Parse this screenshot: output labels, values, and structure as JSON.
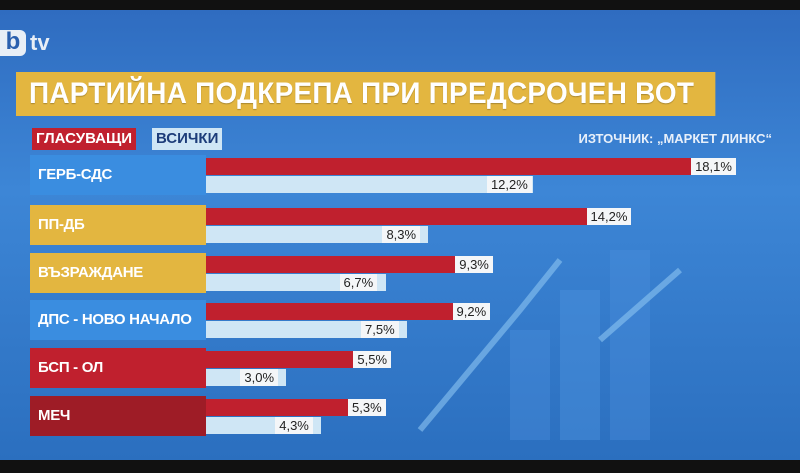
{
  "logo": {
    "b": "b",
    "tv": "tv"
  },
  "title": "ПАРТИЙНА ПОДКРЕПА ПРИ ПРЕДСРОЧЕН ВОТ",
  "source": "ИЗТОЧНИК: „МАРКЕТ ЛИНКС“",
  "colors": {
    "voters": "#c0202e",
    "all": "#cfe6f5",
    "title_bg": "#e3b640",
    "background": "#3578c8"
  },
  "chart_data": {
    "type": "bar",
    "orientation": "horizontal",
    "title": "ПАРТИЙНА ПОДКРЕПА ПРИ ПРЕДСРОЧЕН ВОТ",
    "categories": [
      "ГЕРБ-СДС",
      "ПП-ДБ",
      "ВЪЗРАЖДАНЕ",
      "ДПС - НОВО НАЧАЛО",
      "БСП - ОЛ",
      "МЕЧ"
    ],
    "category_colors": [
      "#3a8de0",
      "#e3b640",
      "#e3b640",
      "#3a8de0",
      "#c0202e",
      "#9e1c26"
    ],
    "series": [
      {
        "name": "ГЛАСУВАЩИ",
        "values": [
          18.1,
          14.2,
          9.3,
          9.2,
          5.5,
          5.3
        ],
        "labels": [
          "18,1%",
          "14,2%",
          "9,3%",
          "9,2%",
          "5,5%",
          "5,3%"
        ]
      },
      {
        "name": "ВСИЧКИ",
        "values": [
          12.2,
          8.3,
          6.7,
          7.5,
          3.0,
          4.3
        ],
        "labels": [
          "12,2%",
          "8,3%",
          "6,7%",
          "7,5%",
          "3,0%",
          "4,3%"
        ]
      }
    ],
    "unit": "%",
    "legend": "top-left",
    "grid": false
  }
}
